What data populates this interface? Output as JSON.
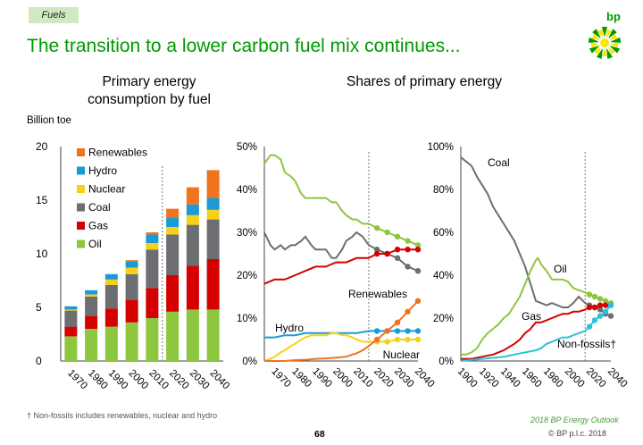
{
  "header": {
    "tag": "Fuels",
    "title": "The transition to a lower carbon fuel mix continues...",
    "brand": "bp"
  },
  "footer": {
    "footnote": "† Non-fossils includes renewables, nuclear and hydro",
    "page_number": "68",
    "source": "2018 BP Energy Outlook",
    "copyright": "© BP p.l.c. 2018"
  },
  "colors": {
    "renewables": "#f0731e",
    "hydro": "#1b9ad6",
    "nuclear": "#f7d117",
    "coal": "#6d6e71",
    "gas": "#d50000",
    "oil": "#8dc63f",
    "nonfossils": "#2cc3d8"
  },
  "chart_data": [
    {
      "type": "bar",
      "stacked": true,
      "title": "Primary energy consumption by fuel",
      "ylabel": "Billion toe",
      "ylim": [
        0,
        20
      ],
      "yticks": [
        "0",
        "5",
        "10",
        "15",
        "20"
      ],
      "categories": [
        "1970",
        "1980",
        "1990",
        "2000",
        "2010",
        "2020",
        "2030",
        "2040"
      ],
      "projection_divider": "after 2010",
      "legend": [
        "Renewables",
        "Hydro",
        "Nuclear",
        "Coal",
        "Gas",
        "Oil"
      ],
      "series": [
        {
          "name": "Oil",
          "values": [
            2.3,
            3.0,
            3.2,
            3.6,
            4.0,
            4.6,
            4.8,
            4.8
          ]
        },
        {
          "name": "Gas",
          "values": [
            0.9,
            1.2,
            1.7,
            2.1,
            2.8,
            3.4,
            4.1,
            4.7
          ]
        },
        {
          "name": "Coal",
          "values": [
            1.5,
            1.8,
            2.2,
            2.4,
            3.6,
            3.8,
            3.8,
            3.7
          ]
        },
        {
          "name": "Nuclear",
          "values": [
            0.1,
            0.2,
            0.5,
            0.6,
            0.6,
            0.7,
            0.9,
            0.9
          ]
        },
        {
          "name": "Hydro",
          "values": [
            0.3,
            0.4,
            0.5,
            0.6,
            0.8,
            0.9,
            1.0,
            1.1
          ]
        },
        {
          "name": "Renewables",
          "values": [
            0.0,
            0.0,
            0.0,
            0.1,
            0.2,
            0.8,
            1.6,
            2.6
          ]
        }
      ]
    },
    {
      "type": "line",
      "title": "Shares of primary energy",
      "ylim": [
        0,
        50
      ],
      "yticks": [
        "0%",
        "10%",
        "20%",
        "30%",
        "40%",
        "50%"
      ],
      "xticks": [
        "1970",
        "1980",
        "1990",
        "2000",
        "2010",
        "2020",
        "2030",
        "2040"
      ],
      "xlim": [
        1965,
        2040
      ],
      "projection_divider": 2016,
      "annotations": [
        "Renewables",
        "Hydro",
        "Nuclear"
      ],
      "series": [
        {
          "key": "oil",
          "label": "",
          "x": [
            1965,
            1968,
            1970,
            1973,
            1975,
            1978,
            1980,
            1983,
            1985,
            1988,
            1990,
            1993,
            1995,
            1998,
            2000,
            2003,
            2005,
            2008,
            2010,
            2013,
            2016
          ],
          "y": [
            46,
            48,
            48,
            47,
            44,
            43,
            42,
            39,
            38,
            38,
            38,
            38,
            38,
            37,
            37,
            35,
            34,
            33,
            33,
            32,
            32
          ]
        },
        {
          "key": "oil_p",
          "label": "",
          "x": [
            2016,
            2020,
            2025,
            2030,
            2035,
            2040
          ],
          "y": [
            32,
            31,
            30,
            29,
            28,
            27
          ]
        },
        {
          "key": "coal",
          "label": "",
          "x": [
            1965,
            1968,
            1970,
            1973,
            1975,
            1978,
            1980,
            1983,
            1985,
            1988,
            1990,
            1993,
            1995,
            1998,
            2000,
            2003,
            2005,
            2008,
            2010,
            2013,
            2016
          ],
          "y": [
            30,
            27,
            26,
            27,
            26,
            27,
            27,
            28,
            29,
            27,
            26,
            26,
            26,
            24,
            24,
            26,
            28,
            29,
            30,
            29,
            27
          ]
        },
        {
          "key": "coal_p",
          "label": "",
          "x": [
            2016,
            2020,
            2025,
            2030,
            2035,
            2040
          ],
          "y": [
            27,
            26,
            25,
            24,
            22,
            21
          ]
        },
        {
          "key": "gas",
          "label": "",
          "x": [
            1965,
            1970,
            1975,
            1980,
            1985,
            1990,
            1995,
            2000,
            2005,
            2010,
            2016
          ],
          "y": [
            18,
            19,
            19,
            20,
            21,
            22,
            22,
            23,
            23,
            24,
            24
          ]
        },
        {
          "key": "gas_p",
          "label": "",
          "x": [
            2016,
            2020,
            2025,
            2030,
            2035,
            2040
          ],
          "y": [
            24,
            25,
            25,
            26,
            26,
            26
          ]
        },
        {
          "key": "hydro",
          "label": "",
          "x": [
            1965,
            1970,
            1975,
            1980,
            1985,
            1990,
            1995,
            2000,
            2005,
            2010,
            2016
          ],
          "y": [
            5.5,
            5.5,
            6,
            6,
            6.5,
            6.5,
            6.5,
            6.5,
            6.5,
            6.5,
            7
          ]
        },
        {
          "key": "hydro_p",
          "label": "",
          "x": [
            2016,
            2020,
            2025,
            2030,
            2035,
            2040
          ],
          "y": [
            7,
            7,
            7,
            7,
            7,
            7
          ]
        },
        {
          "key": "nuclear",
          "label": "",
          "x": [
            1965,
            1968,
            1970,
            1973,
            1975,
            1978,
            1980,
            1983,
            1985,
            1988,
            1990,
            1993,
            1995,
            1998,
            2000,
            2003,
            2005,
            2008,
            2010,
            2013,
            2016
          ],
          "y": [
            0,
            0.5,
            1,
            2,
            2.5,
            3.5,
            4,
            5,
            5.5,
            6,
            6,
            6,
            6,
            6.5,
            6.5,
            6,
            6,
            5.5,
            5,
            4.5,
            4.5
          ]
        },
        {
          "key": "nuclear_p",
          "label": "",
          "x": [
            2016,
            2020,
            2025,
            2030,
            2035,
            2040
          ],
          "y": [
            4.5,
            4.5,
            4.5,
            5,
            5,
            5
          ]
        },
        {
          "key": "renewables",
          "label": "",
          "x": [
            1965,
            1970,
            1975,
            1980,
            1985,
            1990,
            1995,
            2000,
            2005,
            2008,
            2010,
            2013,
            2016
          ],
          "y": [
            0,
            0,
            0,
            0.2,
            0.3,
            0.5,
            0.6,
            0.8,
            1,
            1.5,
            1.8,
            2.5,
            3.5
          ]
        },
        {
          "key": "renewables_p",
          "label": "",
          "x": [
            2016,
            2020,
            2025,
            2030,
            2035,
            2040
          ],
          "y": [
            3.5,
            5,
            7,
            9,
            11.5,
            14
          ]
        }
      ]
    },
    {
      "type": "line",
      "ylim": [
        0,
        100
      ],
      "yticks": [
        "0%",
        "20%",
        "40%",
        "60%",
        "80%",
        "100%"
      ],
      "xticks": [
        "1900",
        "1920",
        "1940",
        "1960",
        "1980",
        "2000",
        "2020",
        "2040"
      ],
      "xlim": [
        1900,
        2040
      ],
      "projection_divider": 2016,
      "annotations": [
        "Coal",
        "Oil",
        "Gas",
        "Non-fossils†"
      ],
      "series": [
        {
          "key": "coal",
          "label": "",
          "x": [
            1900,
            1905,
            1910,
            1915,
            1920,
            1925,
            1930,
            1935,
            1940,
            1945,
            1950,
            1955,
            1960,
            1965,
            1970,
            1975,
            1980,
            1985,
            1990,
            1995,
            2000,
            2005,
            2010,
            2016
          ],
          "y": [
            95,
            93,
            91,
            86,
            82,
            78,
            72,
            68,
            64,
            60,
            56,
            50,
            44,
            36,
            28,
            27,
            26,
            27,
            26,
            25,
            25,
            27,
            30,
            27
          ]
        },
        {
          "key": "coal_p",
          "label": "",
          "x": [
            2016,
            2020,
            2025,
            2030,
            2035,
            2040
          ],
          "y": [
            27,
            26,
            25,
            24,
            22,
            21
          ]
        },
        {
          "key": "oil",
          "label": "",
          "x": [
            1900,
            1905,
            1910,
            1915,
            1920,
            1925,
            1930,
            1935,
            1940,
            1945,
            1950,
            1955,
            1960,
            1965,
            1970,
            1972,
            1975,
            1980,
            1985,
            1990,
            1995,
            2000,
            2005,
            2010,
            2016
          ],
          "y": [
            3,
            3,
            4,
            6,
            10,
            13,
            15,
            17,
            20,
            22,
            26,
            30,
            36,
            42,
            47,
            48,
            45,
            42,
            38,
            38,
            38,
            37,
            34,
            33,
            32
          ]
        },
        {
          "key": "oil_p",
          "label": "",
          "x": [
            2016,
            2020,
            2025,
            2030,
            2035,
            2040
          ],
          "y": [
            32,
            31,
            30,
            29,
            28,
            27
          ]
        },
        {
          "key": "gas",
          "label": "",
          "x": [
            1900,
            1910,
            1920,
            1930,
            1940,
            1950,
            1955,
            1960,
            1965,
            1970,
            1975,
            1980,
            1985,
            1990,
            1995,
            2000,
            2005,
            2010,
            2016
          ],
          "y": [
            1,
            1,
            2,
            3,
            5,
            8,
            10,
            13,
            15,
            18,
            18,
            19,
            20,
            21,
            22,
            22,
            23,
            23,
            24
          ]
        },
        {
          "key": "gas_p",
          "label": "",
          "x": [
            2016,
            2020,
            2025,
            2030,
            2035,
            2040
          ],
          "y": [
            24,
            25,
            25,
            26,
            26,
            26
          ]
        },
        {
          "key": "nonfossils",
          "label": "",
          "x": [
            1900,
            1920,
            1940,
            1950,
            1960,
            1970,
            1975,
            1980,
            1985,
            1990,
            1995,
            2000,
            2005,
            2010,
            2016
          ],
          "y": [
            0,
            1,
            2,
            3,
            4,
            5,
            6,
            8,
            9,
            10,
            11,
            11,
            12,
            13,
            14
          ]
        },
        {
          "key": "nonfossils_p",
          "label": "",
          "x": [
            2016,
            2020,
            2025,
            2030,
            2035,
            2040
          ],
          "y": [
            14,
            16,
            19,
            21,
            23,
            26
          ]
        }
      ]
    }
  ]
}
